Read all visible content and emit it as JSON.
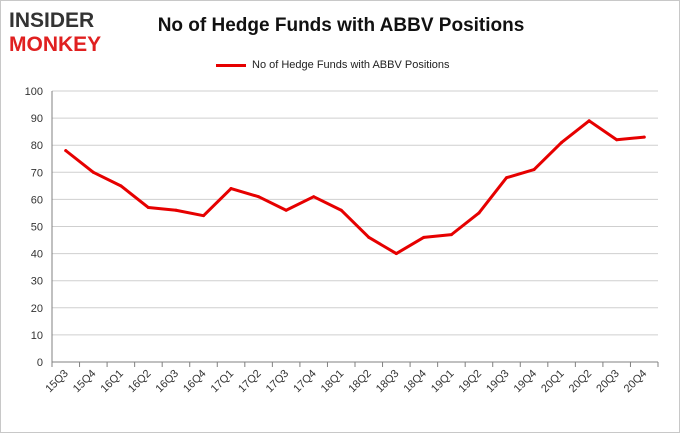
{
  "logo": {
    "line1": "INSIDER",
    "line2": "MONKEY"
  },
  "colors": {
    "series": "#e60000",
    "grid": "#cfcfcf",
    "axis": "#808080",
    "logo_dark": "#333333",
    "logo_red": "#e02020"
  },
  "chart_data": {
    "type": "line",
    "title": "No of Hedge Funds with ABBV Positions",
    "xlabel": "",
    "ylabel": "",
    "ylim": [
      0,
      100
    ],
    "yticks": [
      0,
      10,
      20,
      30,
      40,
      50,
      60,
      70,
      80,
      90,
      100
    ],
    "grid": true,
    "legend_position": "top-center",
    "categories": [
      "15Q3",
      "15Q4",
      "16Q1",
      "16Q2",
      "16Q3",
      "16Q4",
      "17Q1",
      "17Q2",
      "17Q3",
      "17Q4",
      "18Q1",
      "18Q2",
      "18Q3",
      "18Q4",
      "19Q1",
      "19Q2",
      "19Q3",
      "19Q4",
      "20Q1",
      "20Q2",
      "20Q3",
      "20Q4"
    ],
    "series": [
      {
        "name": "No of Hedge Funds with ABBV Positions",
        "values": [
          78,
          70,
          65,
          57,
          56,
          54,
          64,
          61,
          56,
          61,
          56,
          46,
          40,
          46,
          47,
          55,
          68,
          71,
          81,
          89,
          82,
          83
        ]
      }
    ]
  }
}
